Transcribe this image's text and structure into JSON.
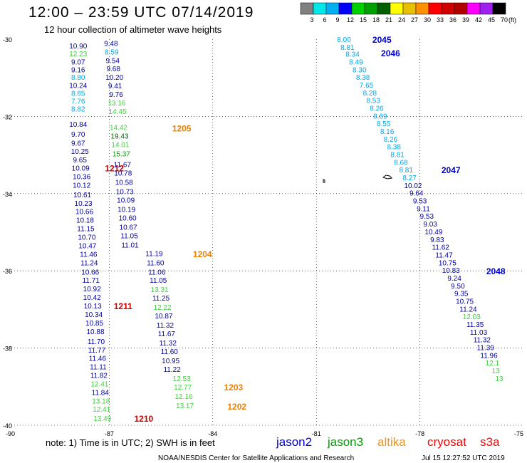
{
  "title": "12:00 – 23:59 UTC 07/14/2019",
  "subtitle": "12 hour collection of altimeter wave heights",
  "colorbar": {
    "colors": [
      "#808080",
      "#00e8e8",
      "#00b0f0",
      "#0000ff",
      "#00d000",
      "#00a000",
      "#006000",
      "#ffff00",
      "#e8c000",
      "#ff9000",
      "#ff0000",
      "#d00000",
      "#b00000",
      "#ff00ff",
      "#a020f0",
      "#000000"
    ],
    "labels": [
      "3",
      "6",
      "9",
      "12",
      "15",
      "18",
      "21",
      "24",
      "27",
      "30",
      "33",
      "36",
      "39",
      "42",
      "45",
      "70"
    ],
    "unit": "(ft)"
  },
  "axes": {
    "lat_labels": [
      "-30",
      "-32",
      "-34",
      "-36",
      "-38",
      "-40"
    ],
    "lon_labels": [
      "-90",
      "-87",
      "-84",
      "-81",
      "-78",
      "-75"
    ],
    "lat_range": [
      -30,
      -40
    ],
    "lon_range": [
      -90,
      -75
    ],
    "gridlines": "dotted"
  },
  "satellites": {
    "jason2": {
      "name": "jason2",
      "color": "#0000d0"
    },
    "jason3": {
      "name": "jason3",
      "color": "#00a000"
    },
    "altika": {
      "name": "altika",
      "color": "#ff9000"
    },
    "cryosat": {
      "name": "cryosat",
      "color": "#ff0000"
    },
    "s3a": {
      "name": "s3a",
      "color": "#ff0000"
    }
  },
  "note": "note: 1) Time is in UTC; 2) SWH is in feet",
  "credit": "NOAA/NESDIS Center for Satellite Applications and Research",
  "timestamp": "Jul 15 12:27:52 UTC 2019",
  "tracks": [
    {
      "time": "1210",
      "time_color": "#d00000",
      "time_lat": -39.82,
      "time_lon": -86.0,
      "points": [
        {
          "lat": -30.17,
          "lon": -87.9,
          "v": "10.90",
          "c": "#0000a0"
        },
        {
          "lat": -30.37,
          "lon": -87.9,
          "v": "12.23",
          "c": "#40d040"
        },
        {
          "lat": -30.58,
          "lon": -87.9,
          "v": "9.07",
          "c": "#0000a0"
        },
        {
          "lat": -30.78,
          "lon": -87.9,
          "v": "9.16",
          "c": "#0000a0"
        },
        {
          "lat": -30.98,
          "lon": -87.9,
          "v": "8.80",
          "c": "#00a8e8"
        },
        {
          "lat": -31.19,
          "lon": -87.9,
          "v": "10.24",
          "c": "#0000a0"
        },
        {
          "lat": -31.39,
          "lon": -87.9,
          "v": "8.65",
          "c": "#00a8e8"
        },
        {
          "lat": -31.6,
          "lon": -87.9,
          "v": "7.76",
          "c": "#00a8e8"
        },
        {
          "lat": -31.8,
          "lon": -87.9,
          "v": "8.82",
          "c": "#00a8e8"
        },
        {
          "lat": -32.2,
          "lon": -87.9,
          "v": "10.84",
          "c": "#0000a0"
        },
        {
          "lat": -32.45,
          "lon": -87.9,
          "v": "9.70",
          "c": "#0000a0"
        },
        {
          "lat": -32.68,
          "lon": -87.9,
          "v": "9.67",
          "c": "#0000a0"
        },
        {
          "lat": -32.9,
          "lon": -87.85,
          "v": "10.25",
          "c": "#0000a0"
        },
        {
          "lat": -33.12,
          "lon": -87.85,
          "v": "9.65",
          "c": "#0000a0"
        },
        {
          "lat": -33.33,
          "lon": -87.83,
          "v": "10.09",
          "c": "#0000a0"
        },
        {
          "lat": -33.55,
          "lon": -87.8,
          "v": "10.36",
          "c": "#0000a0"
        },
        {
          "lat": -33.77,
          "lon": -87.8,
          "v": "10.12",
          "c": "#0000a0"
        },
        {
          "lat": -34.02,
          "lon": -87.78,
          "v": "10.61",
          "c": "#0000a0"
        },
        {
          "lat": -34.24,
          "lon": -87.75,
          "v": "10.23",
          "c": "#0000a0"
        },
        {
          "lat": -34.46,
          "lon": -87.72,
          "v": "10.66",
          "c": "#0000a0"
        },
        {
          "lat": -34.68,
          "lon": -87.7,
          "v": "10.18",
          "c": "#0000a0"
        },
        {
          "lat": -34.9,
          "lon": -87.68,
          "v": "11.15",
          "c": "#0000a0"
        },
        {
          "lat": -35.12,
          "lon": -87.65,
          "v": "10.70",
          "c": "#0000a0"
        },
        {
          "lat": -35.34,
          "lon": -87.63,
          "v": "10.47",
          "c": "#0000a0"
        },
        {
          "lat": -35.56,
          "lon": -87.6,
          "v": "11.46",
          "c": "#0000a0"
        },
        {
          "lat": -35.78,
          "lon": -87.58,
          "v": "11.24",
          "c": "#0000a0"
        },
        {
          "lat": -36.02,
          "lon": -87.55,
          "v": "10.66",
          "c": "#0000a0"
        },
        {
          "lat": -36.24,
          "lon": -87.53,
          "v": "11.71",
          "c": "#0000a0"
        },
        {
          "lat": -36.46,
          "lon": -87.5,
          "v": "10.92",
          "c": "#0000a0"
        },
        {
          "lat": -36.68,
          "lon": -87.5,
          "v": "10.42",
          "c": "#0000a0"
        },
        {
          "lat": -36.9,
          "lon": -87.48,
          "v": "10.13",
          "c": "#0000a0"
        },
        {
          "lat": -37.12,
          "lon": -87.45,
          "v": "10.34",
          "c": "#0000a0"
        },
        {
          "lat": -37.34,
          "lon": -87.43,
          "v": "10.85",
          "c": "#0000a0"
        },
        {
          "lat": -37.56,
          "lon": -87.4,
          "v": "10.88",
          "c": "#0000a0"
        },
        {
          "lat": -37.82,
          "lon": -87.38,
          "v": "11.70",
          "c": "#0000a0"
        },
        {
          "lat": -38.04,
          "lon": -87.36,
          "v": "11.77",
          "c": "#0000a0"
        },
        {
          "lat": -38.26,
          "lon": -87.34,
          "v": "11.46",
          "c": "#0000a0"
        },
        {
          "lat": -38.48,
          "lon": -87.32,
          "v": "11.11",
          "c": "#0000a0"
        },
        {
          "lat": -38.7,
          "lon": -87.3,
          "v": "11.82",
          "c": "#0000a0"
        },
        {
          "lat": -38.92,
          "lon": -87.28,
          "v": "12.41",
          "c": "#40d040"
        },
        {
          "lat": -39.14,
          "lon": -87.26,
          "v": "11.84",
          "c": "#0000a0"
        },
        {
          "lat": -39.36,
          "lon": -87.24,
          "v": "13.18",
          "c": "#40d040"
        },
        {
          "lat": -39.58,
          "lon": -87.22,
          "v": "12.41",
          "c": "#40d040"
        },
        {
          "lat": -39.82,
          "lon": -87.2,
          "v": "13.49",
          "c": "#40d040"
        }
      ]
    },
    {
      "time": "1212",
      "time_color": "#d00000",
      "time_lat": -33.33,
      "time_lon": -86.85,
      "points": []
    },
    {
      "time": "1211",
      "time_color": "#d00000",
      "time_lat": -36.9,
      "time_lon": -86.6,
      "points": []
    },
    {
      "time": "1205",
      "time_color": "#f08000",
      "time_lat": -32.3,
      "time_lon": -84.9,
      "points": [
        {
          "lat": -30.1,
          "lon": -86.95,
          "v": "9.48",
          "c": "#0000a0"
        },
        {
          "lat": -30.32,
          "lon": -86.93,
          "v": "8.59",
          "c": "#00a8e8"
        },
        {
          "lat": -30.54,
          "lon": -86.9,
          "v": "9.54",
          "c": "#0000a0"
        },
        {
          "lat": -30.76,
          "lon": -86.88,
          "v": "9.68",
          "c": "#0000a0"
        },
        {
          "lat": -30.98,
          "lon": -86.85,
          "v": "10.20",
          "c": "#0000a0"
        },
        {
          "lat": -31.2,
          "lon": -86.83,
          "v": "9.41",
          "c": "#0000a0"
        },
        {
          "lat": -31.42,
          "lon": -86.8,
          "v": "9.76",
          "c": "#0000a0"
        },
        {
          "lat": -31.64,
          "lon": -86.78,
          "v": "13.16",
          "c": "#40d040"
        },
        {
          "lat": -31.86,
          "lon": -86.76,
          "v": "14.45",
          "c": "#40d040"
        },
        {
          "lat": -32.28,
          "lon": -86.73,
          "v": "14.42",
          "c": "#40d040"
        },
        {
          "lat": -32.5,
          "lon": -86.7,
          "v": "19.43",
          "c": "#006000"
        },
        {
          "lat": -32.72,
          "lon": -86.68,
          "v": "14.01",
          "c": "#40d040"
        },
        {
          "lat": -32.96,
          "lon": -86.65,
          "v": "15.37",
          "c": "#00a000"
        },
        {
          "lat": -33.24,
          "lon": -86.62,
          "v": "11.67",
          "c": "#0000a0"
        },
        {
          "lat": -33.46,
          "lon": -86.6,
          "v": "10.78",
          "c": "#0000a0"
        },
        {
          "lat": -33.7,
          "lon": -86.57,
          "v": "10.58",
          "c": "#0000a0"
        },
        {
          "lat": -33.94,
          "lon": -86.55,
          "v": "10.73",
          "c": "#0000a0"
        },
        {
          "lat": -34.16,
          "lon": -86.52,
          "v": "10.09",
          "c": "#0000a0"
        },
        {
          "lat": -34.4,
          "lon": -86.5,
          "v": "10.19",
          "c": "#0000a0"
        },
        {
          "lat": -34.62,
          "lon": -86.47,
          "v": "10.60",
          "c": "#0000a0"
        },
        {
          "lat": -34.86,
          "lon": -86.45,
          "v": "10.67",
          "c": "#0000a0"
        },
        {
          "lat": -35.08,
          "lon": -86.42,
          "v": "11.05",
          "c": "#0000a0"
        },
        {
          "lat": -35.32,
          "lon": -86.4,
          "v": "11.01",
          "c": "#0000a0"
        }
      ]
    },
    {
      "time": "1204",
      "time_color": "#f08000",
      "time_lat": -35.55,
      "time_lon": -84.3,
      "points": [
        {
          "lat": -35.54,
          "lon": -85.7,
          "v": "11.19",
          "c": "#0000a0"
        },
        {
          "lat": -35.78,
          "lon": -85.66,
          "v": "11.60",
          "c": "#0000a0"
        },
        {
          "lat": -36.02,
          "lon": -85.62,
          "v": "11.06",
          "c": "#0000a0"
        },
        {
          "lat": -36.24,
          "lon": -85.58,
          "v": "11.05",
          "c": "#0000a0"
        },
        {
          "lat": -36.48,
          "lon": -85.54,
          "v": "13.31",
          "c": "#40d040"
        },
        {
          "lat": -36.7,
          "lon": -85.5,
          "v": "11.25",
          "c": "#0000a0"
        },
        {
          "lat": -36.94,
          "lon": -85.46,
          "v": "12.22",
          "c": "#40d040"
        },
        {
          "lat": -37.16,
          "lon": -85.42,
          "v": "10.87",
          "c": "#0000a0"
        },
        {
          "lat": -37.4,
          "lon": -85.38,
          "v": "11.32",
          "c": "#0000a0"
        },
        {
          "lat": -37.62,
          "lon": -85.34,
          "v": "11.67",
          "c": "#0000a0"
        },
        {
          "lat": -37.86,
          "lon": -85.3,
          "v": "11.32",
          "c": "#0000a0"
        },
        {
          "lat": -38.08,
          "lon": -85.26,
          "v": "11.60",
          "c": "#0000a0"
        },
        {
          "lat": -38.32,
          "lon": -85.22,
          "v": "10.95",
          "c": "#0000a0"
        },
        {
          "lat": -38.54,
          "lon": -85.18,
          "v": "11.22",
          "c": "#0000a0"
        }
      ]
    },
    {
      "time": "1203",
      "time_color": "#f08000",
      "time_lat": -39.0,
      "time_lon": -83.4,
      "points": [
        {
          "lat": -38.78,
          "lon": -84.9,
          "v": "12.53",
          "c": "#40d040"
        },
        {
          "lat": -39.0,
          "lon": -84.87,
          "v": "12.77",
          "c": "#40d040"
        },
        {
          "lat": -39.24,
          "lon": -84.84,
          "v": "12.16",
          "c": "#40d040"
        },
        {
          "lat": -39.48,
          "lon": -84.81,
          "v": "13.17",
          "c": "#40d040"
        }
      ]
    },
    {
      "time": "1202",
      "time_color": "#f08000",
      "time_lat": -39.5,
      "time_lon": -83.3,
      "points": []
    },
    {
      "time": "2045",
      "time_color": "#0000d0",
      "time_lat": -30.0,
      "time_lon": -79.1,
      "points": [
        {
          "lat": -30.0,
          "lon": -80.2,
          "v": "8.00",
          "c": "#00a8e8"
        },
        {
          "lat": -30.2,
          "lon": -80.1,
          "v": "8.81",
          "c": "#00a8e8"
        }
      ]
    },
    {
      "time": "2046",
      "time_color": "#0000d0",
      "time_lat": -30.35,
      "time_lon": -78.85,
      "points": [
        {
          "lat": -30.38,
          "lon": -79.95,
          "v": "8.34",
          "c": "#00a8e8"
        },
        {
          "lat": -30.58,
          "lon": -79.85,
          "v": "8.49",
          "c": "#00a8e8"
        },
        {
          "lat": -30.78,
          "lon": -79.75,
          "v": "8.30",
          "c": "#00a8e8"
        },
        {
          "lat": -30.98,
          "lon": -79.65,
          "v": "8.38",
          "c": "#00a8e8"
        },
        {
          "lat": -31.18,
          "lon": -79.55,
          "v": "7.65",
          "c": "#00a8e8"
        },
        {
          "lat": -31.38,
          "lon": -79.45,
          "v": "8.28",
          "c": "#00a8e8"
        },
        {
          "lat": -31.58,
          "lon": -79.35,
          "v": "8.53",
          "c": "#00a8e8"
        },
        {
          "lat": -31.78,
          "lon": -79.25,
          "v": "8.26",
          "c": "#00a8e8"
        },
        {
          "lat": -31.98,
          "lon": -79.15,
          "v": "8.69",
          "c": "#00a8e8"
        },
        {
          "lat": -32.18,
          "lon": -79.05,
          "v": "8.55",
          "c": "#00a8e8"
        },
        {
          "lat": -32.38,
          "lon": -78.95,
          "v": "8.16",
          "c": "#00a8e8"
        },
        {
          "lat": -32.58,
          "lon": -78.85,
          "v": "8.26",
          "c": "#00a8e8"
        },
        {
          "lat": -32.78,
          "lon": -78.75,
          "v": "8.38",
          "c": "#00a8e8"
        },
        {
          "lat": -32.98,
          "lon": -78.65,
          "v": "8.81",
          "c": "#00a8e8"
        },
        {
          "lat": -33.18,
          "lon": -78.55,
          "v": "8.68",
          "c": "#00a8e8"
        }
      ]
    },
    {
      "time": "2047",
      "time_color": "#0000d0",
      "time_lat": -33.38,
      "time_lon": -77.1,
      "points": [
        {
          "lat": -33.38,
          "lon": -78.4,
          "v": "8.81",
          "c": "#00a8e8"
        },
        {
          "lat": -33.58,
          "lon": -78.3,
          "v": "8.27",
          "c": "#00a8e8"
        },
        {
          "lat": -33.78,
          "lon": -78.2,
          "v": "10.02",
          "c": "#0000a0"
        },
        {
          "lat": -33.98,
          "lon": -78.1,
          "v": "9.64",
          "c": "#0000a0"
        },
        {
          "lat": -34.18,
          "lon": -78.0,
          "v": "9.53",
          "c": "#0000a0"
        },
        {
          "lat": -34.38,
          "lon": -77.9,
          "v": "9.11",
          "c": "#0000a0"
        },
        {
          "lat": -34.58,
          "lon": -77.8,
          "v": "9.53",
          "c": "#0000a0"
        },
        {
          "lat": -34.78,
          "lon": -77.7,
          "v": "9.03",
          "c": "#0000a0"
        },
        {
          "lat": -34.98,
          "lon": -77.6,
          "v": "10.49",
          "c": "#0000a0"
        },
        {
          "lat": -35.18,
          "lon": -77.5,
          "v": "9.83",
          "c": "#0000a0"
        },
        {
          "lat": -35.38,
          "lon": -77.4,
          "v": "11.62",
          "c": "#0000a0"
        },
        {
          "lat": -35.58,
          "lon": -77.3,
          "v": "11.47",
          "c": "#0000a0"
        },
        {
          "lat": -35.78,
          "lon": -77.2,
          "v": "10.75",
          "c": "#0000a0"
        },
        {
          "lat": -35.98,
          "lon": -77.1,
          "v": "10.83",
          "c": "#0000a0"
        },
        {
          "lat": -36.18,
          "lon": -77.0,
          "v": "9.24",
          "c": "#0000a0"
        }
      ]
    },
    {
      "time": "2048",
      "time_color": "#0000d0",
      "time_lat": -36.0,
      "time_lon": -75.8,
      "points": [
        {
          "lat": -36.38,
          "lon": -76.9,
          "v": "9.50",
          "c": "#0000a0"
        },
        {
          "lat": -36.58,
          "lon": -76.8,
          "v": "9.35",
          "c": "#0000a0"
        },
        {
          "lat": -36.78,
          "lon": -76.7,
          "v": "10.75",
          "c": "#0000a0"
        },
        {
          "lat": -36.98,
          "lon": -76.6,
          "v": "11.24",
          "c": "#0000a0"
        },
        {
          "lat": -37.18,
          "lon": -76.5,
          "v": "12.03",
          "c": "#40d040"
        },
        {
          "lat": -37.38,
          "lon": -76.4,
          "v": "11.35",
          "c": "#0000a0"
        },
        {
          "lat": -37.58,
          "lon": -76.3,
          "v": "11.03",
          "c": "#0000a0"
        },
        {
          "lat": -37.78,
          "lon": -76.2,
          "v": "11.32",
          "c": "#0000a0"
        },
        {
          "lat": -37.98,
          "lon": -76.1,
          "v": "11.39",
          "c": "#0000a0"
        },
        {
          "lat": -38.18,
          "lon": -76.0,
          "v": "11.96",
          "c": "#0000a0"
        },
        {
          "lat": -38.38,
          "lon": -75.9,
          "v": "12.1",
          "c": "#40d040"
        },
        {
          "lat": -38.58,
          "lon": -75.8,
          "v": "13",
          "c": "#40d040"
        },
        {
          "lat": -38.78,
          "lon": -75.7,
          "v": "13",
          "c": "#40d040"
        }
      ]
    }
  ]
}
